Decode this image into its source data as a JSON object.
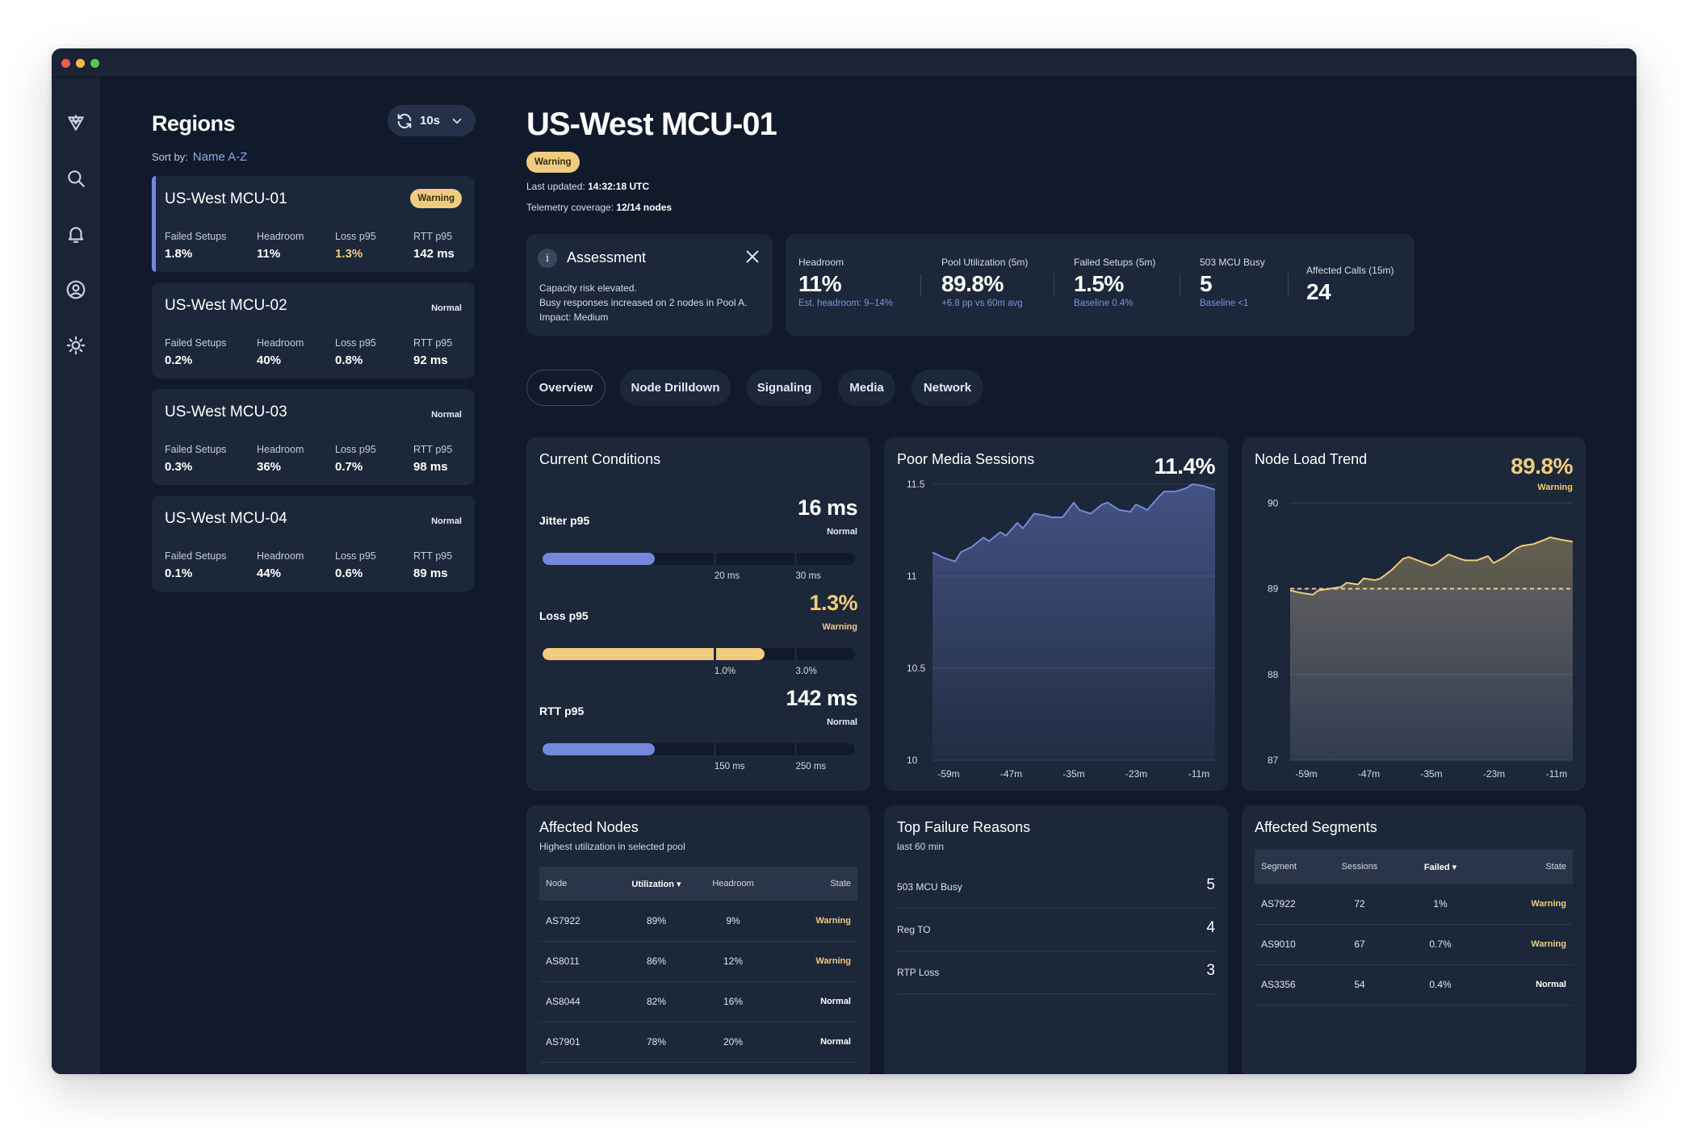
{
  "colors": {
    "accent": "#7388db",
    "warning": "#f0cc7e",
    "background": "#111a2b",
    "card": "#1c2739"
  },
  "rail": {
    "icons": [
      "logo-icon",
      "search-icon",
      "bell-icon",
      "user-circle-icon",
      "sun-icon"
    ]
  },
  "regions": {
    "title": "Regions",
    "sort_label": "Sort by:",
    "sort_value": "Name A-Z",
    "refresh_label": "10s",
    "items": [
      {
        "name": "US-West MCU-01",
        "state": "Warning",
        "failed_setups": "1.8%",
        "headroom": "11%",
        "loss_p95": "1.3%",
        "rtt_p95": "142 ms"
      },
      {
        "name": "US-West MCU-02",
        "state": "Normal",
        "failed_setups": "0.2%",
        "headroom": "40%",
        "loss_p95": "0.8%",
        "rtt_p95": "92 ms"
      },
      {
        "name": "US-West MCU-03",
        "state": "Normal",
        "failed_setups": "0.3%",
        "headroom": "36%",
        "loss_p95": "0.7%",
        "rtt_p95": "98 ms"
      },
      {
        "name": "US-West MCU-04",
        "state": "Normal",
        "failed_setups": "0.1%",
        "headroom": "44%",
        "loss_p95": "0.6%",
        "rtt_p95": "89 ms"
      }
    ],
    "metric_labels": {
      "failed_setups": "Failed Setups",
      "headroom": "Headroom",
      "loss_p95": "Loss p95",
      "rtt_p95": "RTT p95"
    }
  },
  "header": {
    "title": "US-West MCU-01",
    "status": "Warning",
    "last_updated_label": "Last updated:",
    "last_updated_value": "14:32:18 UTC",
    "coverage_label": "Telemetry coverage:",
    "coverage_value": "12/14 nodes"
  },
  "assessment": {
    "icon": "i",
    "title": "Assessment",
    "line1": "Capacity risk elevated.",
    "line2": "Busy responses increased on 2 nodes in Pool A.",
    "line3": "Impact: Medium"
  },
  "kpis": [
    {
      "label": "Headroom",
      "value": "11%",
      "sub": "Est. headroom: 9–14%"
    },
    {
      "label": "Pool Utilization (5m)",
      "value": "89.8%",
      "sub": "+6.8 pp vs 60m avg"
    },
    {
      "label": "Failed Setups (5m)",
      "value": "1.5%",
      "sub": "Baseline 0.4%"
    },
    {
      "label": "503 MCU Busy",
      "value": "5",
      "sub": "Baseline <1"
    },
    {
      "label": "Affected Calls (15m)",
      "value": "24",
      "sub": ""
    }
  ],
  "tabs": [
    "Overview",
    "Node Drilldown",
    "Signaling",
    "Media",
    "Network"
  ],
  "conditions": {
    "title": "Current Conditions",
    "rows": [
      {
        "label": "Jitter p95",
        "value": "16 ms",
        "state": "Normal",
        "fill": 0.36,
        "color": "#7388db",
        "ticks": [
          "20 ms",
          "30 ms"
        ]
      },
      {
        "label": "Loss p95",
        "value": "1.3%",
        "state": "Warning",
        "fill": 0.71,
        "color": "#f0cc7e",
        "ticks": [
          "1.0%",
          "3.0%"
        ]
      },
      {
        "label": "RTT p95",
        "value": "142 ms",
        "state": "Normal",
        "fill": 0.36,
        "color": "#7388db",
        "ticks": [
          "150 ms",
          "250 ms"
        ]
      }
    ]
  },
  "chart_data": [
    {
      "type": "area",
      "title": "Poor Media Sessions",
      "current_value": "11.4%",
      "x_ticks": [
        "-59m",
        "-47m",
        "-35m",
        "-23m",
        "-11m"
      ],
      "y_ticks": [
        "11.5",
        "11",
        "10.5",
        "10"
      ],
      "xlim": [
        -60,
        -10
      ],
      "ylim": [
        10,
        11.5
      ],
      "grid": true,
      "color": "#7388db",
      "series": [
        {
          "x": [
            -60,
            -58,
            -56,
            -55,
            -53,
            -51,
            -50,
            -48,
            -47,
            -45,
            -44,
            -42,
            -40,
            -39,
            -37,
            -35,
            -34,
            -32,
            -30,
            -29,
            -27,
            -25,
            -24,
            -22,
            -20,
            -19,
            -17,
            -15,
            -14,
            -12,
            -10
          ],
          "y": [
            11.13,
            11.1,
            11.08,
            11.13,
            11.16,
            11.21,
            11.19,
            11.24,
            11.22,
            11.29,
            11.26,
            11.34,
            11.33,
            11.32,
            11.32,
            11.4,
            11.36,
            11.34,
            11.39,
            11.4,
            11.36,
            11.35,
            11.39,
            11.36,
            11.43,
            11.46,
            11.46,
            11.48,
            11.5,
            11.49,
            11.47
          ]
        }
      ]
    },
    {
      "type": "area",
      "title": "Node Load Trend",
      "current_value": "89.8%",
      "current_state": "Warning",
      "x_ticks": [
        "-59m",
        "-47m",
        "-35m",
        "-23m",
        "-11m"
      ],
      "y_ticks": [
        "90",
        "89",
        "88",
        "87"
      ],
      "xlim": [
        -60,
        -10
      ],
      "ylim": [
        87,
        90.2
      ],
      "threshold": 89,
      "grid": true,
      "color": "#f0cc7e",
      "series": [
        {
          "x": [
            -60,
            -58,
            -56,
            -55,
            -53,
            -51,
            -50,
            -48,
            -47,
            -45,
            -44,
            -42,
            -40,
            -39,
            -37,
            -35,
            -34,
            -32,
            -30,
            -29,
            -27,
            -25,
            -24,
            -22,
            -20,
            -19,
            -17,
            -15,
            -14,
            -12,
            -10
          ],
          "y": [
            88.98,
            88.95,
            88.93,
            88.98,
            89.0,
            89.02,
            89.07,
            89.05,
            89.12,
            89.1,
            89.12,
            89.22,
            89.35,
            89.37,
            89.32,
            89.27,
            89.3,
            89.4,
            89.35,
            89.33,
            89.33,
            89.38,
            89.3,
            89.37,
            89.47,
            89.5,
            89.52,
            89.57,
            89.6,
            89.57,
            89.55
          ]
        }
      ]
    }
  ],
  "affected_nodes": {
    "title": "Affected Nodes",
    "subtitle": "Highest utilization in selected pool",
    "headers": [
      "Node",
      "Utilization ▾",
      "Headroom",
      "State"
    ],
    "rows": [
      {
        "node": "AS7922",
        "util": "89%",
        "headroom": "9%",
        "state": "Warning"
      },
      {
        "node": "AS8011",
        "util": "86%",
        "headroom": "12%",
        "state": "Warning"
      },
      {
        "node": "AS8044",
        "util": "82%",
        "headroom": "16%",
        "state": "Normal"
      },
      {
        "node": "AS7901",
        "util": "78%",
        "headroom": "20%",
        "state": "Normal"
      }
    ]
  },
  "failure_reasons": {
    "title": "Top Failure Reasons",
    "subtitle": "last 60 min",
    "rows": [
      {
        "label": "503 MCU Busy",
        "value": "5"
      },
      {
        "label": "Reg TO",
        "value": "4"
      },
      {
        "label": "RTP Loss",
        "value": "3"
      }
    ]
  },
  "affected_segments": {
    "title": "Affected Segments",
    "headers": [
      "Segment",
      "Sessions",
      "Failed ▾",
      "State"
    ],
    "rows": [
      {
        "segment": "AS7922",
        "sessions": "72",
        "failed": "1%",
        "state": "Warning"
      },
      {
        "segment": "AS9010",
        "sessions": "67",
        "failed": "0.7%",
        "state": "Warning"
      },
      {
        "segment": "AS3356",
        "sessions": "54",
        "failed": "0.4%",
        "state": "Normal"
      }
    ]
  }
}
